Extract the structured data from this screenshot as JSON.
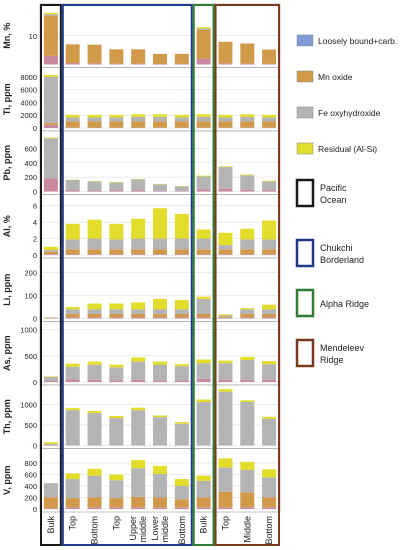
{
  "chart_data": {
    "type": "bar",
    "stacked": true,
    "grid": true,
    "categories": [
      "Bulk",
      "Top",
      "Bottom",
      "Top",
      "Upper middle",
      "Lower middle",
      "Bottom",
      "Bulk",
      "Top",
      "Middle",
      "Bottom"
    ],
    "groups": [
      {
        "name": "Pacific Ocean",
        "color": "#1a1a1a",
        "columns": [
          0
        ]
      },
      {
        "name": "Chukchi Borderland",
        "color": "#1f3a8a",
        "columns": [
          1,
          2,
          3,
          4,
          5,
          6
        ]
      },
      {
        "name": "Alpha Ridge",
        "color": "#2e7d32",
        "columns": [
          7
        ]
      },
      {
        "name": "Mendeleev Ridge",
        "color": "#7a3a1e",
        "columns": [
          8,
          9,
          10
        ]
      }
    ],
    "legend": [
      {
        "name": "Loosely bound+carb.",
        "color": "#7f9bd6"
      },
      {
        "name": "Mn oxide",
        "color": "#d09a4a"
      },
      {
        "name": "Fe oxyhydroxide",
        "color": "#b4b4b4"
      },
      {
        "name": "Residual (Al-Si)",
        "color": "#e2dc2a"
      }
    ],
    "panels": [
      {
        "ylabel": "Mn, %",
        "ylim": [
          0,
          20
        ],
        "ticks": [
          "10"
        ],
        "tick_values": [
          10
        ],
        "series": {
          "loose": [
            3,
            0.5,
            0.4,
            0.3,
            0.3,
            0.2,
            0.2,
            2,
            0.4,
            0.3,
            0.2
          ],
          "mn": [
            14,
            6.5,
            6.5,
            5,
            5,
            3.5,
            3.5,
            10,
            7.5,
            7,
            5
          ],
          "fe": [
            0.5,
            0,
            0,
            0,
            0,
            0,
            0,
            0.5,
            0,
            0,
            0
          ],
          "residual": [
            0.5,
            0,
            0,
            0,
            0,
            0,
            0,
            0.5,
            0,
            0,
            0
          ]
        }
      },
      {
        "ylabel": "Ti, ppm",
        "ylim": [
          0,
          9000
        ],
        "ticks": [
          "8000",
          "6000",
          "4000",
          "2000",
          "0"
        ],
        "tick_values": [
          8000,
          6000,
          4000,
          2000,
          0
        ],
        "series": {
          "loose": [
            500,
            50,
            50,
            50,
            50,
            50,
            50,
            50,
            50,
            50,
            50
          ],
          "mn": [
            300,
            1000,
            1000,
            1000,
            1000,
            1000,
            1000,
            1000,
            1000,
            1000,
            1000
          ],
          "fe": [
            7200,
            600,
            600,
            600,
            700,
            700,
            600,
            700,
            600,
            700,
            600
          ],
          "residual": [
            300,
            400,
            400,
            400,
            400,
            400,
            400,
            400,
            400,
            400,
            400
          ]
        }
      },
      {
        "ylabel": "Pb, ppm",
        "ylim": [
          0,
          800
        ],
        "ticks": [
          "600",
          "400",
          "200",
          "0"
        ],
        "tick_values": [
          600,
          400,
          200,
          0
        ],
        "series": {
          "loose": [
            180,
            20,
            15,
            15,
            20,
            10,
            10,
            30,
            40,
            25,
            20
          ],
          "mn": [
            0,
            0,
            0,
            0,
            0,
            0,
            0,
            0,
            0,
            0,
            0
          ],
          "fe": [
            560,
            140,
            125,
            110,
            150,
            90,
            60,
            180,
            300,
            200,
            120
          ],
          "residual": [
            10,
            5,
            5,
            5,
            5,
            5,
            5,
            10,
            10,
            10,
            10
          ]
        }
      },
      {
        "ylabel": "Al, %",
        "ylim": [
          0,
          7
        ],
        "ticks": [
          "6",
          "4",
          "2",
          "0"
        ],
        "tick_values": [
          6,
          4,
          2,
          0
        ],
        "series": {
          "loose": [
            0.1,
            0.1,
            0.1,
            0.1,
            0.1,
            0.1,
            0.1,
            0.1,
            0.1,
            0.1,
            0.1
          ],
          "mn": [
            0.3,
            0.6,
            0.6,
            0.6,
            0.6,
            0.6,
            0.6,
            0.6,
            0.6,
            0.6,
            0.6
          ],
          "fe": [
            0.2,
            1.2,
            1.3,
            1.2,
            1.3,
            1.3,
            1.3,
            1.3,
            0.5,
            1.2,
            1.2
          ],
          "residual": [
            0.4,
            1.9,
            2.3,
            1.9,
            2.4,
            3.7,
            3.0,
            1.1,
            1.5,
            1.3,
            2.3
          ]
        }
      },
      {
        "ylabel": "Li, ppm",
        "ylim": [
          0,
          250
        ],
        "ticks": [
          "200",
          "100",
          "0"
        ],
        "tick_values": [
          200,
          100,
          0
        ],
        "series": {
          "loose": [
            0,
            5,
            5,
            5,
            5,
            5,
            5,
            5,
            3,
            5,
            5
          ],
          "mn": [
            3,
            15,
            15,
            15,
            15,
            15,
            15,
            15,
            5,
            15,
            15
          ],
          "fe": [
            2,
            20,
            20,
            20,
            20,
            20,
            20,
            65,
            5,
            20,
            20
          ],
          "residual": [
            0,
            10,
            25,
            25,
            30,
            45,
            40,
            10,
            5,
            5,
            20
          ]
        }
      },
      {
        "ylabel": "As, ppm",
        "ylim": [
          0,
          1100
        ],
        "ticks": [
          "1000",
          "500",
          "0"
        ],
        "tick_values": [
          1000,
          500,
          0
        ],
        "series": {
          "loose": [
            20,
            50,
            40,
            30,
            40,
            30,
            30,
            60,
            40,
            40,
            40
          ],
          "mn": [
            0,
            0,
            0,
            0,
            0,
            0,
            0,
            0,
            0,
            0,
            0
          ],
          "fe": [
            80,
            240,
            290,
            250,
            350,
            300,
            270,
            300,
            320,
            380,
            300
          ],
          "residual": [
            10,
            60,
            60,
            50,
            80,
            60,
            40,
            70,
            50,
            60,
            60
          ]
        }
      },
      {
        "ylabel": "Th, ppm",
        "ylim": [
          0,
          1400
        ],
        "ticks": [
          "1000",
          "500",
          "0"
        ],
        "tick_values": [
          1000,
          500,
          0
        ],
        "series": {
          "loose": [
            10,
            10,
            10,
            10,
            10,
            10,
            10,
            10,
            10,
            10,
            10
          ],
          "mn": [
            0,
            0,
            0,
            0,
            0,
            0,
            0,
            0,
            0,
            0,
            0
          ],
          "fe": [
            30,
            850,
            780,
            660,
            850,
            680,
            520,
            1050,
            1300,
            1050,
            640
          ],
          "residual": [
            40,
            50,
            50,
            50,
            60,
            40,
            40,
            60,
            60,
            40,
            50
          ]
        }
      },
      {
        "ylabel": "V, ppm",
        "ylim": [
          0,
          1000
        ],
        "ticks": [
          "800",
          "600",
          "400",
          "200",
          "0"
        ],
        "tick_values": [
          800,
          600,
          400,
          200,
          0
        ],
        "series": {
          "loose": [
            10,
            30,
            30,
            30,
            30,
            30,
            30,
            30,
            30,
            30,
            30
          ],
          "mn": [
            190,
            160,
            170,
            160,
            180,
            170,
            140,
            170,
            270,
            260,
            170
          ],
          "fe": [
            250,
            330,
            380,
            310,
            500,
            410,
            230,
            290,
            420,
            390,
            350
          ],
          "residual": [
            0,
            100,
            120,
            100,
            140,
            140,
            120,
            90,
            160,
            140,
            140
          ]
        }
      }
    ]
  }
}
